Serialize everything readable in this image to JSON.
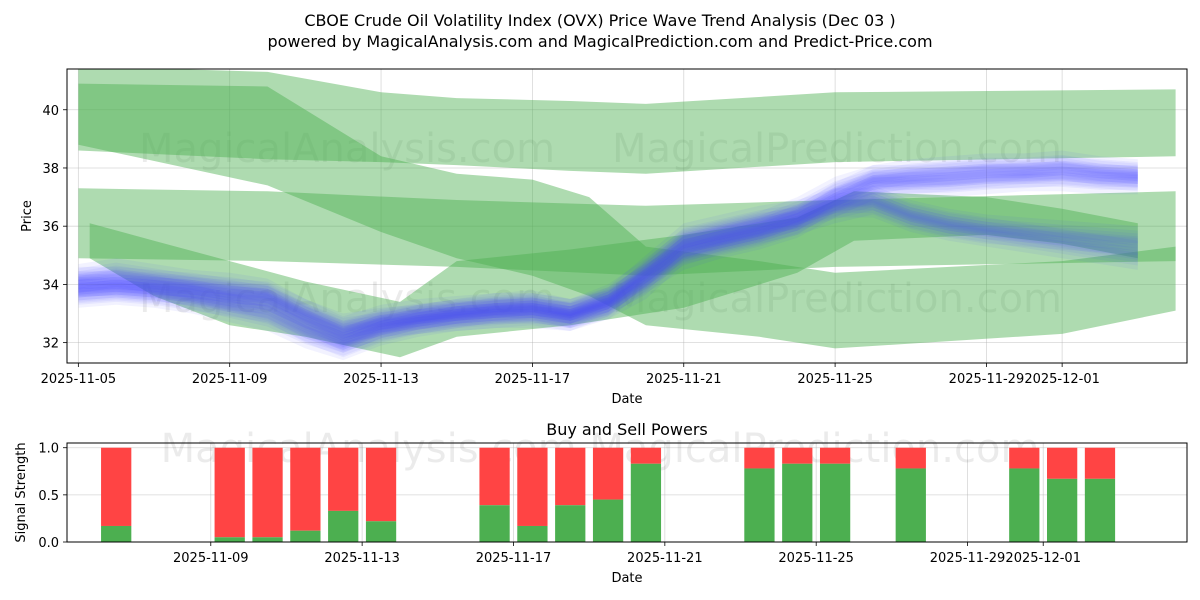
{
  "title_line1": "CBOE Crude Oil Volatility Index (OVX) Price Wave Trend Analysis (Dec 03 )",
  "title_line2": "powered by MagicalAnalysis.com and MagicalPrediction.com and Predict-Price.com",
  "watermarks": [
    "MagicalAnalysis.com",
    "MagicalPrediction.com"
  ],
  "colors": {
    "green": "#4caf50",
    "blue": "#4d4dff",
    "red": "#ff4444",
    "buy": "#4caf50",
    "sell": "#ff4444"
  },
  "chart_data": [
    {
      "type": "area",
      "name": "price-wave-chart",
      "xlabel": "Date",
      "ylabel": "Price",
      "xlim": [
        -0.3,
        29.3
      ],
      "ylim": [
        31.3,
        41.4
      ],
      "x_ticks": [
        {
          "day": 0,
          "label": "2025-11-05"
        },
        {
          "day": 4,
          "label": "2025-11-09"
        },
        {
          "day": 8,
          "label": "2025-11-13"
        },
        {
          "day": 12,
          "label": "2025-11-17"
        },
        {
          "day": 16,
          "label": "2025-11-21"
        },
        {
          "day": 20,
          "label": "2025-11-25"
        },
        {
          "day": 24,
          "label": "2025-11-29"
        },
        {
          "day": 26,
          "label": "2025-12-01"
        }
      ],
      "y_ticks": [
        32,
        34,
        36,
        38,
        40
      ],
      "x_dates_note": "x values are days since 2025-11-05",
      "green_bands": [
        {
          "x": [
            0,
            5,
            8,
            10,
            13,
            15,
            20,
            29
          ],
          "lower": [
            38.6,
            38.3,
            38.2,
            38.1,
            37.9,
            37.8,
            38.2,
            38.4
          ],
          "upper": [
            41.5,
            41.3,
            40.6,
            40.4,
            40.3,
            40.2,
            40.6,
            40.7
          ]
        },
        {
          "x": [
            0,
            5,
            8,
            10,
            12,
            13.5,
            15,
            18,
            20,
            26,
            29
          ],
          "lower": [
            38.8,
            37.4,
            35.8,
            34.9,
            34.3,
            33.6,
            32.6,
            32.2,
            31.8,
            32.3,
            33.1
          ],
          "upper": [
            40.9,
            40.8,
            38.4,
            37.8,
            37.6,
            37.0,
            35.3,
            34.8,
            34.4,
            34.8,
            35.3
          ]
        },
        {
          "x": [
            0,
            5,
            10,
            15,
            20,
            29
          ],
          "lower": [
            34.9,
            34.8,
            34.6,
            34.3,
            34.6,
            34.8
          ],
          "upper": [
            37.3,
            37.2,
            36.9,
            36.7,
            36.9,
            37.2
          ]
        },
        {
          "x": [
            0.3,
            2,
            4,
            6,
            8.5,
            10,
            13,
            16,
            19,
            20.5,
            24,
            26,
            28
          ],
          "lower": [
            34.9,
            33.6,
            32.6,
            32.2,
            31.5,
            32.2,
            32.6,
            33.2,
            34.4,
            35.5,
            35.7,
            35.4,
            34.9
          ],
          "upper": [
            36.1,
            35.5,
            34.8,
            34.1,
            33.4,
            34.8,
            35.2,
            35.7,
            36.3,
            37.2,
            37.0,
            36.6,
            36.1
          ]
        }
      ],
      "blue_series": [
        {
          "name": "wave-1",
          "x": [
            0,
            1,
            2,
            3,
            4,
            5,
            6,
            7,
            8,
            9,
            10,
            11,
            12,
            13,
            14,
            15,
            16,
            17,
            18,
            19,
            20,
            21,
            22,
            23,
            24,
            25,
            26,
            27,
            28
          ],
          "y": [
            33.9,
            34.0,
            33.9,
            33.8,
            33.6,
            33.5,
            32.8,
            32.2,
            32.6,
            32.8,
            32.9,
            33.0,
            33.0,
            32.9,
            33.4,
            34.2,
            35.0,
            35.4,
            35.7,
            36.1,
            36.8,
            37.4,
            37.5,
            37.5,
            37.6,
            37.7,
            37.7,
            37.6,
            37.6
          ]
        },
        {
          "name": "wave-2",
          "x": [
            0,
            1,
            2,
            3,
            4,
            5,
            6,
            7,
            8,
            9,
            10,
            11,
            12,
            13,
            14,
            15,
            16,
            17,
            18,
            19,
            20,
            21,
            22,
            23,
            24,
            25,
            26,
            27,
            28
          ],
          "y": [
            33.7,
            33.8,
            33.7,
            33.5,
            33.2,
            32.9,
            32.3,
            31.9,
            32.4,
            32.7,
            32.9,
            33.0,
            33.1,
            32.9,
            33.3,
            34.0,
            35.2,
            35.5,
            35.8,
            36.2,
            37.0,
            37.6,
            37.8,
            37.9,
            38.0,
            38.0,
            38.1,
            37.9,
            37.8
          ]
        },
        {
          "name": "wave-3",
          "x": [
            0,
            1,
            2,
            3,
            4,
            5,
            6,
            7,
            8,
            9,
            10,
            11,
            12,
            13,
            14,
            15,
            16,
            17,
            18,
            19,
            20,
            21,
            22,
            23,
            24,
            25,
            26,
            27,
            28
          ],
          "y": [
            34.2,
            34.4,
            34.2,
            34.0,
            33.9,
            33.7,
            33.0,
            32.5,
            32.7,
            32.8,
            33.0,
            33.2,
            33.3,
            33.0,
            33.3,
            34.3,
            35.3,
            35.6,
            35.9,
            36.2,
            36.6,
            36.9,
            36.4,
            36.1,
            35.9,
            35.8,
            35.7,
            35.6,
            35.5
          ]
        },
        {
          "name": "wave-4",
          "x": [
            0,
            1,
            2,
            3,
            4,
            5,
            6,
            7,
            8,
            9,
            10,
            11,
            12,
            13,
            14,
            15,
            16,
            17,
            18,
            19,
            20,
            21,
            22,
            23,
            24,
            25,
            26,
            27,
            28
          ],
          "y": [
            33.8,
            33.9,
            33.8,
            33.6,
            33.4,
            33.2,
            32.5,
            32.0,
            32.5,
            32.8,
            33.0,
            33.1,
            33.2,
            33.0,
            33.4,
            34.5,
            35.6,
            35.9,
            36.2,
            36.4,
            36.8,
            36.8,
            36.3,
            36.0,
            35.8,
            35.6,
            35.4,
            35.2,
            35.0
          ]
        },
        {
          "name": "wave-5",
          "x": [
            0,
            1,
            2,
            3,
            4,
            5,
            6,
            7,
            8,
            9,
            10,
            11,
            12,
            13,
            14,
            15,
            16,
            17,
            18,
            19,
            20,
            21,
            22,
            23,
            24,
            25,
            26,
            27,
            28
          ],
          "y": [
            34.1,
            34.1,
            34.0,
            33.9,
            33.7,
            33.6,
            33.0,
            32.4,
            32.8,
            33.0,
            33.1,
            33.2,
            33.2,
            33.0,
            33.5,
            34.4,
            35.4,
            35.7,
            36.0,
            36.5,
            37.2,
            37.6,
            37.6,
            37.7,
            37.8,
            37.8,
            37.9,
            37.8,
            37.7
          ]
        }
      ]
    },
    {
      "type": "bar",
      "name": "buy-sell-powers-chart",
      "title": "Buy and Sell Powers",
      "xlabel": "Date",
      "ylabel": "Signal Strength",
      "xlim": [
        -0.3,
        29.3
      ],
      "ylim": [
        0,
        1.05
      ],
      "y_ticks": [
        0.0,
        0.5,
        1.0
      ],
      "x_ticks": [
        {
          "day": 3.5,
          "label": "2025-11-09"
        },
        {
          "day": 7.5,
          "label": "2025-11-13"
        },
        {
          "day": 11.5,
          "label": "2025-11-17"
        },
        {
          "day": 15.5,
          "label": "2025-11-21"
        },
        {
          "day": 19.5,
          "label": "2025-11-25"
        },
        {
          "day": 23.5,
          "label": "2025-11-29"
        },
        {
          "day": 25.5,
          "label": "2025-12-01"
        }
      ],
      "series": [
        {
          "name": "Buy"
        },
        {
          "name": "Sell"
        }
      ],
      "bars": [
        {
          "day": 1,
          "buy": 0.17
        },
        {
          "day": 4,
          "buy": 0.05
        },
        {
          "day": 5,
          "buy": 0.05
        },
        {
          "day": 6,
          "buy": 0.12
        },
        {
          "day": 7,
          "buy": 0.33
        },
        {
          "day": 8,
          "buy": 0.22
        },
        {
          "day": 11,
          "buy": 0.39
        },
        {
          "day": 12,
          "buy": 0.17
        },
        {
          "day": 13,
          "buy": 0.39
        },
        {
          "day": 14,
          "buy": 0.45
        },
        {
          "day": 15,
          "buy": 0.83
        },
        {
          "day": 18,
          "buy": 0.78
        },
        {
          "day": 19,
          "buy": 0.83
        },
        {
          "day": 20,
          "buy": 0.83
        },
        {
          "day": 22,
          "buy": 0.78
        },
        {
          "day": 25,
          "buy": 0.78
        },
        {
          "day": 26,
          "buy": 0.67
        },
        {
          "day": 27,
          "buy": 0.67
        }
      ]
    }
  ]
}
